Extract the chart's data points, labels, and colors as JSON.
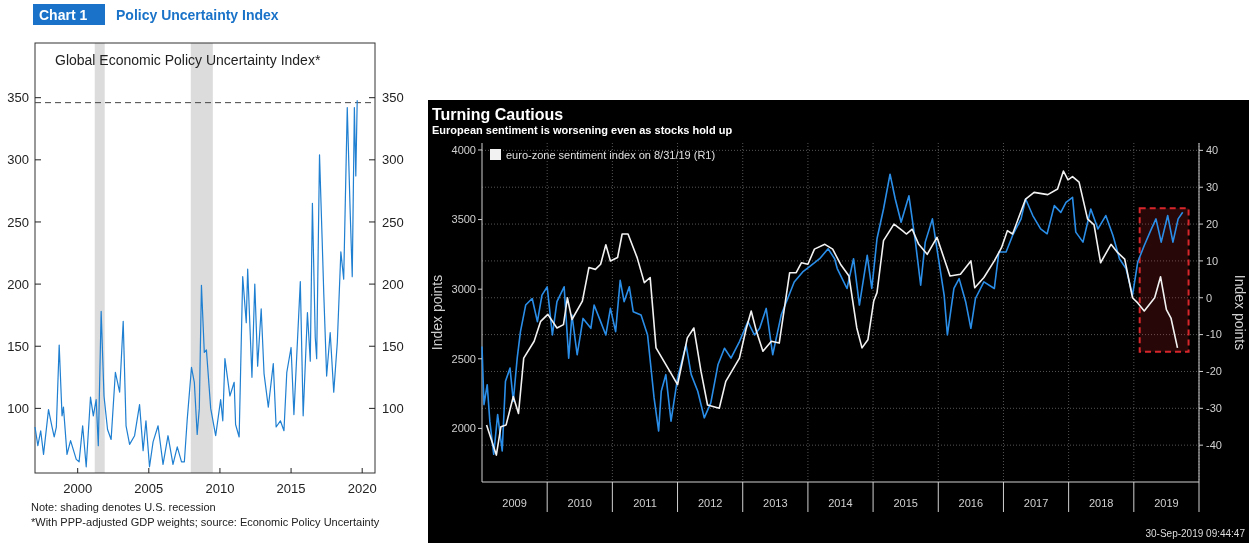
{
  "chart_data": [
    {
      "type": "line",
      "title": "Policy Uncertainty Index",
      "subtitle": "Global Economic Policy Uncertainty Index*",
      "annotations": [
        "Chart 1",
        "Note: shading denotes U.S. recession",
        "*With PPP-adjusted GDP weights; source: Economic Policy Uncertainty"
      ],
      "x": [
        1997.0,
        1997.2,
        1997.4,
        1997.6,
        1997.95,
        1998.2,
        1998.35,
        1998.5,
        1998.7,
        1998.9,
        1999.0,
        1999.25,
        1999.5,
        1999.9,
        2000.1,
        2000.35,
        2000.6,
        2000.9,
        2001.1,
        2001.3,
        2001.45,
        2001.65,
        2001.85,
        2002.1,
        2002.35,
        2002.65,
        2002.95,
        2003.2,
        2003.4,
        2003.65,
        2004.0,
        2004.35,
        2004.6,
        2004.8,
        2005.05,
        2005.3,
        2005.65,
        2006.0,
        2006.35,
        2006.7,
        2007.0,
        2007.3,
        2007.5,
        2007.7,
        2008.0,
        2008.2,
        2008.4,
        2008.55,
        2008.7,
        2008.9,
        2009.05,
        2009.35,
        2009.7,
        2010.05,
        2010.2,
        2010.35,
        2010.7,
        2011.0,
        2011.1,
        2011.35,
        2011.6,
        2011.85,
        2011.95,
        2012.25,
        2012.45,
        2012.65,
        2012.9,
        2013.1,
        2013.4,
        2013.75,
        2013.95,
        2014.25,
        2014.5,
        2014.7,
        2015.0,
        2015.2,
        2015.65,
        2015.85,
        2016.15,
        2016.35,
        2016.5,
        2016.7,
        2016.8,
        2017.0,
        2017.2,
        2017.3,
        2017.5,
        2017.75,
        2018.0,
        2018.25,
        2018.5,
        2018.7,
        2018.95,
        2019.15,
        2019.3,
        2019.45,
        2019.55,
        2019.65
      ],
      "series": [
        {
          "color": "#1f7fd1",
          "values": [
            85,
            70,
            82,
            63,
            99,
            85,
            77,
            85,
            151,
            94,
            101,
            63,
            74,
            59,
            57,
            86,
            53,
            109,
            94,
            107,
            70,
            178,
            110,
            83,
            75,
            129,
            113,
            170,
            86,
            71,
            78,
            103,
            66,
            90,
            53,
            73,
            86,
            55,
            78,
            55,
            69,
            57,
            57,
            91,
            133,
            121,
            79,
            100,
            199,
            145,
            147,
            100,
            78,
            107,
            90,
            140,
            110,
            121,
            87,
            77,
            206,
            169,
            212,
            125,
            200,
            134,
            180,
            128,
            101,
            136,
            85,
            90,
            82,
            129,
            149,
            95,
            202,
            94,
            177,
            138,
            265,
            157,
            140,
            304,
            230,
            192,
            126,
            161,
            113,
            153,
            226,
            204,
            342,
            260,
            206,
            342,
            287,
            348
          ]
        }
      ],
      "xlim": [
        1997,
        2020.9
      ],
      "xticks": [
        2000,
        2005,
        2010,
        2015,
        2020
      ],
      "ylim": [
        48,
        394
      ],
      "yticks": [
        100,
        150,
        200,
        250,
        300,
        350
      ],
      "y2lim": [
        48,
        394
      ],
      "y2ticks": [
        100,
        150,
        200,
        250,
        300,
        350
      ],
      "ref_lines": [
        {
          "axis": "y",
          "value": 346,
          "color": "#444444",
          "line_style": "dashed"
        }
      ],
      "bands": [
        {
          "axis": "x",
          "from": 2001.2,
          "to": 2001.9,
          "color": "#dcdcdc"
        },
        {
          "axis": "x",
          "from": 2007.95,
          "to": 2009.5,
          "color": "#dcdcdc"
        }
      ]
    },
    {
      "type": "line",
      "title": "Turning Cautious",
      "subtitle": "European sentiment is worsening even as stocks hold up",
      "ylabel": "Index points",
      "y2label": "Index points",
      "annotations": [
        "30-Sep-2019 09:44:47"
      ],
      "series": [
        {
          "color": "#2a8ee8",
          "x": [
            2009.0,
            2009.03,
            2009.08,
            2009.12,
            2009.18,
            2009.24,
            2009.31,
            2009.36,
            2009.43,
            2009.48,
            2009.54,
            2009.59,
            2009.67,
            2009.77,
            2009.85,
            2009.92,
            2010.0,
            2010.08,
            2010.15,
            2010.26,
            2010.33,
            2010.38,
            2010.46,
            2010.55,
            2010.67,
            2010.72,
            2010.82,
            2010.9,
            2010.97,
            2011.05,
            2011.12,
            2011.18,
            2011.26,
            2011.32,
            2011.44,
            2011.54,
            2011.64,
            2011.71,
            2011.75,
            2011.82,
            2011.9,
            2012.0,
            2012.13,
            2012.21,
            2012.31,
            2012.41,
            2012.51,
            2012.62,
            2012.72,
            2012.82,
            2012.95,
            2013.08,
            2013.18,
            2013.26,
            2013.36,
            2013.46,
            2013.59,
            2013.69,
            2013.79,
            2013.92,
            2014.05,
            2014.18,
            2014.31,
            2014.41,
            2014.45,
            2014.6,
            2014.7,
            2014.79,
            2014.91,
            2014.98,
            2015.06,
            2015.16,
            2015.26,
            2015.34,
            2015.43,
            2015.55,
            2015.65,
            2015.73,
            2015.8,
            2015.91,
            2015.98,
            2016.09,
            2016.14,
            2016.24,
            2016.32,
            2016.42,
            2016.5,
            2016.57,
            2016.7,
            2016.86,
            2016.93,
            2017.04,
            2017.14,
            2017.27,
            2017.34,
            2017.45,
            2017.57,
            2017.67,
            2017.78,
            2017.88,
            2017.96,
            2018.06,
            2018.11,
            2018.22,
            2018.34,
            2018.45,
            2018.57,
            2018.68,
            2018.78,
            2018.88,
            2018.98,
            2019.06,
            2019.16,
            2019.27,
            2019.34,
            2019.42,
            2019.52,
            2019.6,
            2019.68,
            2019.75
          ],
          "values": [
            2588,
            2171,
            2314,
            2052,
            1814,
            2100,
            1838,
            2338,
            2433,
            2195,
            2505,
            2695,
            2886,
            2933,
            2767,
            2957,
            3017,
            2671,
            2910,
            3017,
            2505,
            2814,
            2529,
            2790,
            2719,
            2886,
            2767,
            2671,
            2862,
            2695,
            3064,
            2910,
            3017,
            2838,
            2814,
            2671,
            2219,
            1981,
            2267,
            2386,
            2052,
            2362,
            2600,
            2386,
            2267,
            2076,
            2183,
            2457,
            2576,
            2505,
            2624,
            2767,
            2671,
            2719,
            2862,
            2529,
            2814,
            2933,
            3052,
            3124,
            3171,
            3219,
            3290,
            3219,
            3148,
            3005,
            3219,
            2886,
            3243,
            3005,
            3362,
            3576,
            3826,
            3648,
            3481,
            3671,
            3338,
            3029,
            3338,
            3505,
            3290,
            2957,
            2671,
            3005,
            3076,
            2910,
            2719,
            2933,
            3052,
            3005,
            3267,
            3267,
            3386,
            3505,
            3648,
            3529,
            3433,
            3398,
            3600,
            3552,
            3624,
            3660,
            3410,
            3338,
            3576,
            3433,
            3529,
            3386,
            3219,
            3148,
            2957,
            3195,
            3314,
            3433,
            3505,
            3338,
            3529,
            3338,
            3505,
            3552
          ]
        },
        {
          "name": "euro-zone sentiment index on 8/31/19 (R1)",
          "color": "#f2f2f2",
          "axis": "y2",
          "x": [
            2009.07,
            2009.22,
            2009.29,
            2009.37,
            2009.48,
            2009.56,
            2009.64,
            2009.8,
            2009.9,
            2010.01,
            2010.15,
            2010.25,
            2010.31,
            2010.38,
            2010.54,
            2010.64,
            2010.74,
            2010.82,
            2010.9,
            2010.97,
            2011.08,
            2011.15,
            2011.24,
            2011.38,
            2011.49,
            2011.58,
            2011.67,
            2011.9,
            2012.0,
            2012.15,
            2012.25,
            2012.36,
            2012.46,
            2012.64,
            2012.74,
            2012.95,
            2013.05,
            2013.13,
            2013.21,
            2013.31,
            2013.44,
            2013.56,
            2013.72,
            2013.82,
            2013.9,
            2014.0,
            2014.1,
            2014.26,
            2014.38,
            2014.5,
            2014.63,
            2014.75,
            2014.83,
            2014.92,
            2015.01,
            2015.06,
            2015.16,
            2015.32,
            2015.45,
            2015.51,
            2015.6,
            2015.7,
            2015.83,
            2015.98,
            2016.18,
            2016.34,
            2016.5,
            2016.56,
            2016.7,
            2016.86,
            2016.97,
            2017.06,
            2017.14,
            2017.34,
            2017.47,
            2017.68,
            2017.83,
            2017.92,
            2017.99,
            2018.06,
            2018.16,
            2018.29,
            2018.39,
            2018.49,
            2018.65,
            2018.75,
            2018.86,
            2018.98,
            2019.06,
            2019.16,
            2019.32,
            2019.41,
            2019.5,
            2019.57,
            2019.67
          ],
          "values": [
            -34.5,
            -42.7,
            -35,
            -34.5,
            -26.8,
            -31.4,
            -16.4,
            -11.8,
            -6.4,
            -4.5,
            -8.2,
            -7.3,
            0,
            -5.9,
            -0.9,
            8.2,
            7.7,
            9.1,
            14.4,
            10,
            10.9,
            17.3,
            17.3,
            10.9,
            4.1,
            5.5,
            -13.6,
            -20.5,
            -23.6,
            -10.9,
            -8.2,
            -20,
            -29.1,
            -30,
            -22.7,
            -16.4,
            -8.6,
            -3.6,
            -9.1,
            -14.5,
            -11.8,
            -12.3,
            6.8,
            6.8,
            9.5,
            9.1,
            13.2,
            14.5,
            13.2,
            9.1,
            5.9,
            -8.2,
            -13.6,
            -11.4,
            -0.9,
            1.4,
            15.5,
            20,
            18.2,
            17.3,
            18.6,
            14.5,
            11.8,
            16.4,
            5.9,
            6.4,
            10,
            2.7,
            5.5,
            10,
            13.6,
            18.2,
            17.3,
            26.8,
            28.6,
            28,
            29.5,
            34.4,
            32,
            32.9,
            31.4,
            21.4,
            19.8,
            9.5,
            14.5,
            12.3,
            10.5,
            0,
            -1.4,
            -3.6,
            0,
            5.7,
            -3.2,
            -5.5,
            -13.6
          ]
        }
      ],
      "xlim": [
        2009,
        2020
      ],
      "xticks": [
        {
          "value": 2009.5,
          "label": "2009"
        },
        {
          "value": 2010,
          "label": null
        },
        {
          "value": 2010.5,
          "label": "2010"
        },
        {
          "value": 2011,
          "label": null
        },
        {
          "value": 2011.5,
          "label": "2011"
        },
        {
          "value": 2012,
          "label": null
        },
        {
          "value": 2012.5,
          "label": "2012"
        },
        {
          "value": 2013,
          "label": null
        },
        {
          "value": 2013.5,
          "label": "2013"
        },
        {
          "value": 2014,
          "label": null
        },
        {
          "value": 2014.5,
          "label": "2014"
        },
        {
          "value": 2015,
          "label": null
        },
        {
          "value": 2015.5,
          "label": "2015"
        },
        {
          "value": 2016,
          "label": null
        },
        {
          "value": 2016.5,
          "label": "2016"
        },
        {
          "value": 2017,
          "label": null
        },
        {
          "value": 2017.5,
          "label": "2017"
        },
        {
          "value": 2018,
          "label": null
        },
        {
          "value": 2018.5,
          "label": "2018"
        },
        {
          "value": 2019,
          "label": null
        },
        {
          "value": 2019.5,
          "label": "2019"
        },
        {
          "value": 2020,
          "label": null
        }
      ],
      "ylim": [
        1615,
        4050
      ],
      "yticks": [
        2000,
        2500,
        3000,
        3500,
        4000
      ],
      "y2lim": [
        -50,
        42
      ],
      "y2ticks": [
        -40,
        -30,
        -20,
        -10,
        0,
        10,
        20,
        30,
        40
      ],
      "grid": true,
      "legend": "top left",
      "bands": [
        {
          "axis": "x",
          "from": 2019.09,
          "to": 2019.84,
          "color": "#d7262b"
        }
      ]
    }
  ]
}
